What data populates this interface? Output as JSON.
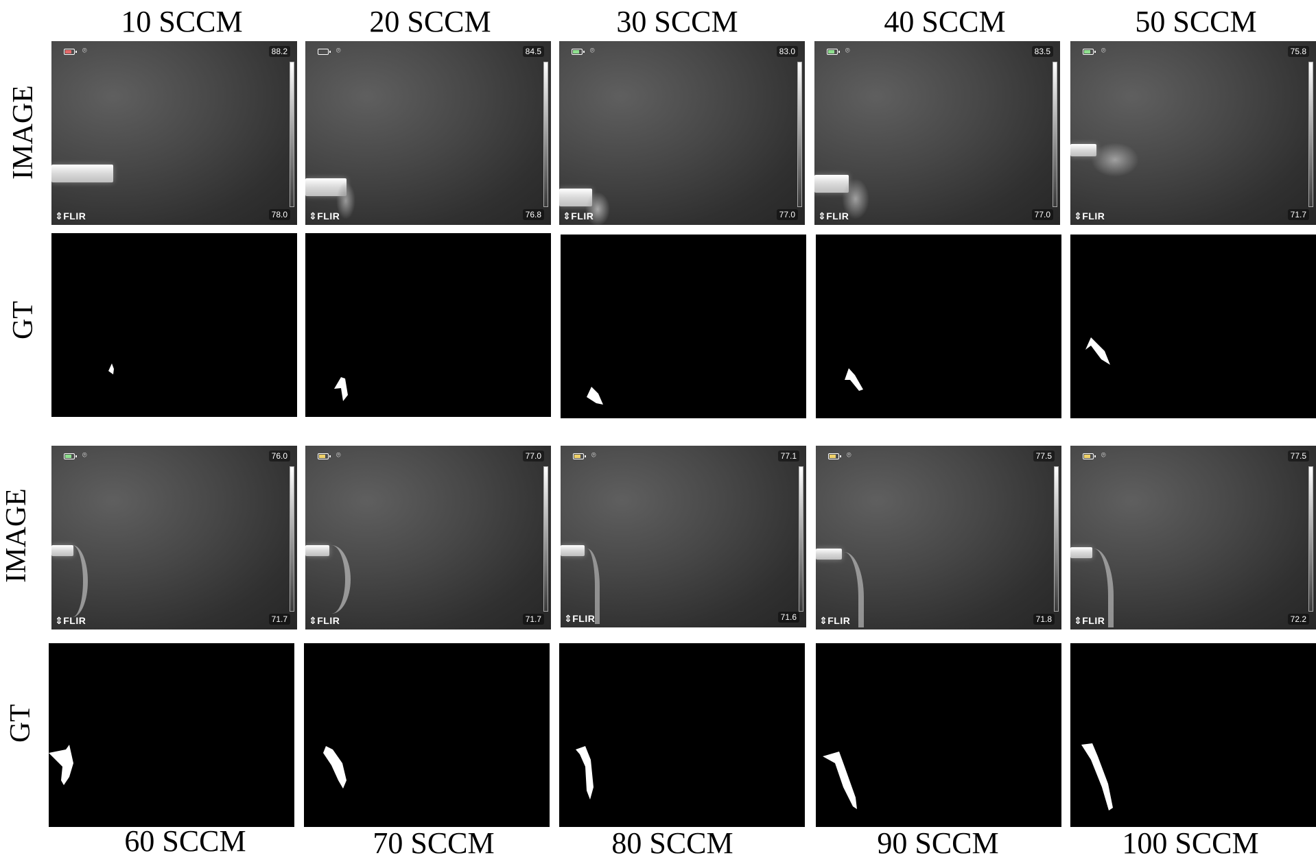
{
  "row_labels": [
    "IMAGE",
    "GT",
    "IMAGE",
    "GT"
  ],
  "top_columns": [
    {
      "label": "10 SCCM",
      "temp_max": "88.2",
      "temp_min": "78.0",
      "battery_color": "#e46a6a"
    },
    {
      "label": "20 SCCM",
      "temp_max": "84.5",
      "temp_min": "76.8",
      "battery_color": "#ffffff"
    },
    {
      "label": "30 SCCM",
      "temp_max": "83.0",
      "temp_min": "77.0",
      "battery_color": "#8fe08f"
    },
    {
      "label": "40 SCCM",
      "temp_max": "83.5",
      "temp_min": "77.0",
      "battery_color": "#8fe08f"
    },
    {
      "label": "50 SCCM",
      "temp_max": "75.8",
      "temp_min": "71.7",
      "battery_color": "#8fe08f"
    }
  ],
  "bottom_columns": [
    {
      "label": "60 SCCM",
      "temp_max": "76.0",
      "temp_min": "71.7",
      "battery_color": "#8fe08f"
    },
    {
      "label": "70 SCCM",
      "temp_max": "77.0",
      "temp_min": "71.7",
      "battery_color": "#f0d26a"
    },
    {
      "label": "80 SCCM",
      "temp_max": "77.1",
      "temp_min": "71.6",
      "battery_color": "#f0d26a"
    },
    {
      "label": "90 SCCM",
      "temp_max": "77.5",
      "temp_min": "71.8",
      "battery_color": "#f0d26a"
    },
    {
      "label": "100 SCCM",
      "temp_max": "77.5",
      "temp_min": "72.2",
      "battery_color": "#f0d26a"
    }
  ],
  "brand": "FLIR",
  "icons": {
    "battery": "battery-icon",
    "location": "location-pin-icon",
    "brand": "flir-logo-icon"
  }
}
